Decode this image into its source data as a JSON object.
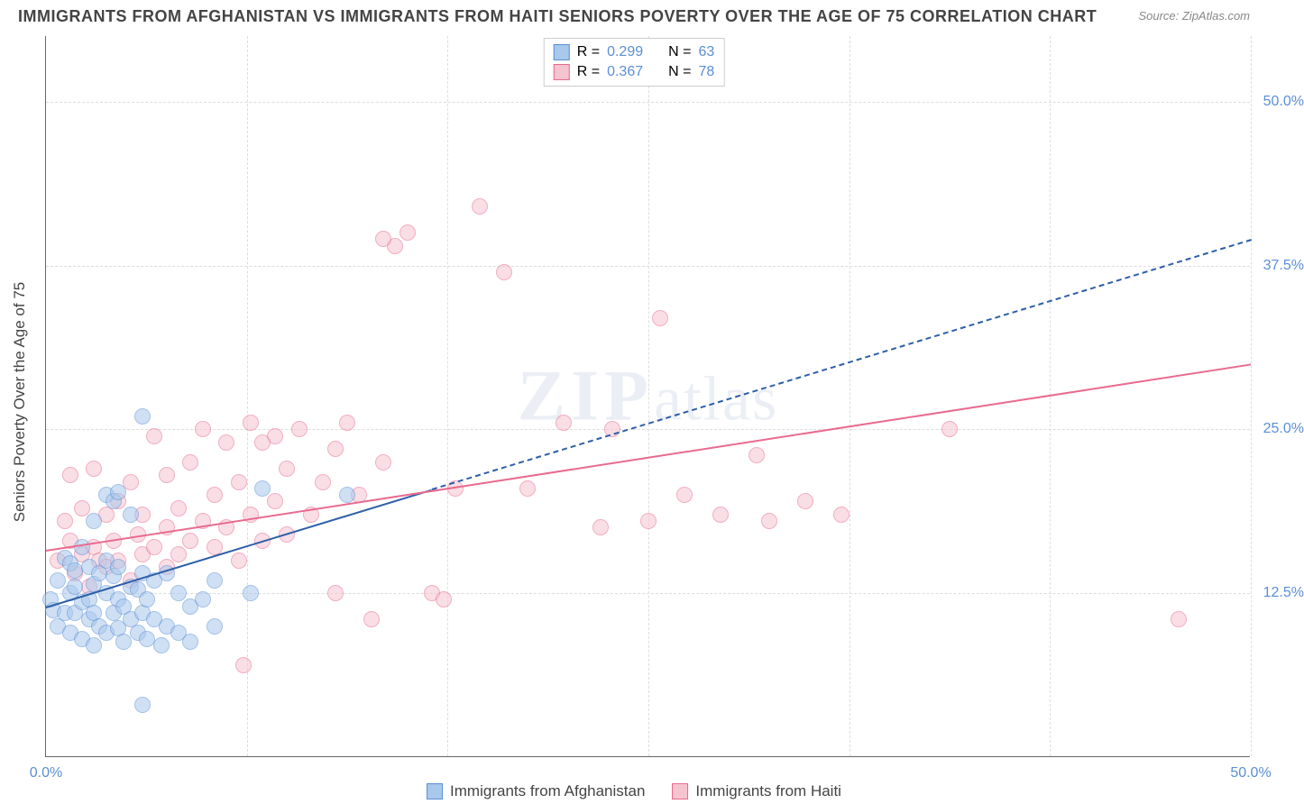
{
  "title": "IMMIGRANTS FROM AFGHANISTAN VS IMMIGRANTS FROM HAITI SENIORS POVERTY OVER THE AGE OF 75 CORRELATION CHART",
  "source": "Source: ZipAtlas.com",
  "ylabel": "Seniors Poverty Over the Age of 75",
  "watermark_zip": "ZIP",
  "watermark_atlas": "atlas",
  "chart": {
    "type": "scatter",
    "xlim": [
      0,
      50
    ],
    "ylim": [
      0,
      55
    ],
    "xtick_labels": [
      "0.0%",
      "50.0%"
    ],
    "xtick_positions": [
      0,
      50
    ],
    "ytick_labels": [
      "12.5%",
      "25.0%",
      "37.5%",
      "50.0%"
    ],
    "ytick_positions": [
      12.5,
      25.0,
      37.5,
      50.0
    ],
    "vgrid_positions": [
      0,
      8.33,
      16.67,
      25,
      33.33,
      41.67,
      50
    ],
    "background_color": "#ffffff",
    "grid_color": "#dddddd",
    "axis_color": "#666666",
    "label_color": "#5b8fd6",
    "point_radius": 9,
    "point_opacity": 0.55,
    "series": [
      {
        "name": "Immigrants from Afghanistan",
        "color_fill": "#a8c8ec",
        "color_stroke": "#5b8fd6",
        "trend_color": "#2e5fa8",
        "trend_width": 2.5,
        "trend_solid_end_x": 16,
        "trend_start": [
          0,
          11.5
        ],
        "trend_end": [
          50,
          39.5
        ],
        "R": "0.299",
        "N": "63",
        "points": [
          [
            0.2,
            12.0
          ],
          [
            0.3,
            11.2
          ],
          [
            0.5,
            10.0
          ],
          [
            0.5,
            13.5
          ],
          [
            0.8,
            11.0
          ],
          [
            0.8,
            15.2
          ],
          [
            1.0,
            9.5
          ],
          [
            1.0,
            12.5
          ],
          [
            1.0,
            14.8
          ],
          [
            1.2,
            11.0
          ],
          [
            1.2,
            13.0
          ],
          [
            1.2,
            14.2
          ],
          [
            1.5,
            9.0
          ],
          [
            1.5,
            11.8
          ],
          [
            1.5,
            16.0
          ],
          [
            1.8,
            10.5
          ],
          [
            1.8,
            12.0
          ],
          [
            1.8,
            14.5
          ],
          [
            2.0,
            8.5
          ],
          [
            2.0,
            11.0
          ],
          [
            2.0,
            13.2
          ],
          [
            2.0,
            18.0
          ],
          [
            2.2,
            10.0
          ],
          [
            2.2,
            14.0
          ],
          [
            2.5,
            9.5
          ],
          [
            2.5,
            12.5
          ],
          [
            2.5,
            15.0
          ],
          [
            2.5,
            20.0
          ],
          [
            2.8,
            11.0
          ],
          [
            2.8,
            13.8
          ],
          [
            2.8,
            19.5
          ],
          [
            3.0,
            9.8
          ],
          [
            3.0,
            12.0
          ],
          [
            3.0,
            14.5
          ],
          [
            3.0,
            20.2
          ],
          [
            3.2,
            8.8
          ],
          [
            3.2,
            11.5
          ],
          [
            3.5,
            10.5
          ],
          [
            3.5,
            13.0
          ],
          [
            3.5,
            18.5
          ],
          [
            3.8,
            9.5
          ],
          [
            3.8,
            12.8
          ],
          [
            4.0,
            11.0
          ],
          [
            4.0,
            14.0
          ],
          [
            4.0,
            26.0
          ],
          [
            4.2,
            9.0
          ],
          [
            4.2,
            12.0
          ],
          [
            4.5,
            10.5
          ],
          [
            4.5,
            13.5
          ],
          [
            4.8,
            8.5
          ],
          [
            5.0,
            10.0
          ],
          [
            5.0,
            14.0
          ],
          [
            5.5,
            9.5
          ],
          [
            5.5,
            12.5
          ],
          [
            6.0,
            8.8
          ],
          [
            6.0,
            11.5
          ],
          [
            6.5,
            12.0
          ],
          [
            7.0,
            10.0
          ],
          [
            7.0,
            13.5
          ],
          [
            4.0,
            4.0
          ],
          [
            8.5,
            12.5
          ],
          [
            9.0,
            20.5
          ],
          [
            12.5,
            20.0
          ]
        ]
      },
      {
        "name": "Immigrants from Haiti",
        "color_fill": "#f5c4d0",
        "color_stroke": "#e86b8f",
        "trend_color": "#e86b8f",
        "trend_width": 2.5,
        "trend_solid_end_x": 50,
        "trend_start": [
          0,
          15.8
        ],
        "trend_end": [
          50,
          30.0
        ],
        "R": "0.367",
        "N": "78",
        "points": [
          [
            0.5,
            15.0
          ],
          [
            0.8,
            18.0
          ],
          [
            1.0,
            16.5
          ],
          [
            1.0,
            21.5
          ],
          [
            1.2,
            14.0
          ],
          [
            1.5,
            15.5
          ],
          [
            1.5,
            19.0
          ],
          [
            1.8,
            13.0
          ],
          [
            2.0,
            16.0
          ],
          [
            2.0,
            22.0
          ],
          [
            2.2,
            15.0
          ],
          [
            2.5,
            18.5
          ],
          [
            2.5,
            14.5
          ],
          [
            2.8,
            16.5
          ],
          [
            3.0,
            19.5
          ],
          [
            3.0,
            15.0
          ],
          [
            3.5,
            13.5
          ],
          [
            3.5,
            21.0
          ],
          [
            3.8,
            17.0
          ],
          [
            4.0,
            15.5
          ],
          [
            4.0,
            18.5
          ],
          [
            4.5,
            16.0
          ],
          [
            4.5,
            24.5
          ],
          [
            5.0,
            14.5
          ],
          [
            5.0,
            17.5
          ],
          [
            5.0,
            21.5
          ],
          [
            5.5,
            15.5
          ],
          [
            5.5,
            19.0
          ],
          [
            6.0,
            16.5
          ],
          [
            6.0,
            22.5
          ],
          [
            6.5,
            18.0
          ],
          [
            6.5,
            25.0
          ],
          [
            7.0,
            16.0
          ],
          [
            7.0,
            20.0
          ],
          [
            7.5,
            17.5
          ],
          [
            7.5,
            24.0
          ],
          [
            8.0,
            15.0
          ],
          [
            8.0,
            21.0
          ],
          [
            8.2,
            7.0
          ],
          [
            8.5,
            18.5
          ],
          [
            8.5,
            25.5
          ],
          [
            9.0,
            16.5
          ],
          [
            9.5,
            19.5
          ],
          [
            9.5,
            24.5
          ],
          [
            10.0,
            17.0
          ],
          [
            10.0,
            22.0
          ],
          [
            10.5,
            25.0
          ],
          [
            11.0,
            18.5
          ],
          [
            11.5,
            21.0
          ],
          [
            12.0,
            12.5
          ],
          [
            12.0,
            23.5
          ],
          [
            12.5,
            25.5
          ],
          [
            13.0,
            20.0
          ],
          [
            13.5,
            10.5
          ],
          [
            14.0,
            22.5
          ],
          [
            14.5,
            39.0
          ],
          [
            15.0,
            40.0
          ],
          [
            16.0,
            12.5
          ],
          [
            16.5,
            12.0
          ],
          [
            17.0,
            20.5
          ],
          [
            18.0,
            42.0
          ],
          [
            19.0,
            37.0
          ],
          [
            20.0,
            20.5
          ],
          [
            21.5,
            25.5
          ],
          [
            23.0,
            17.5
          ],
          [
            23.5,
            25.0
          ],
          [
            25.0,
            18.0
          ],
          [
            25.5,
            33.5
          ],
          [
            26.5,
            20.0
          ],
          [
            28.0,
            18.5
          ],
          [
            29.5,
            23.0
          ],
          [
            30.0,
            18.0
          ],
          [
            31.5,
            19.5
          ],
          [
            33.0,
            18.5
          ],
          [
            37.5,
            25.0
          ],
          [
            47.0,
            10.5
          ],
          [
            14.0,
            39.5
          ],
          [
            9.0,
            24.0
          ]
        ]
      }
    ]
  },
  "legend_top": {
    "r_label": "R",
    "n_label": "N",
    "eq": "="
  },
  "legend_bottom": {
    "items": [
      "Immigrants from Afghanistan",
      "Immigrants from Haiti"
    ]
  }
}
